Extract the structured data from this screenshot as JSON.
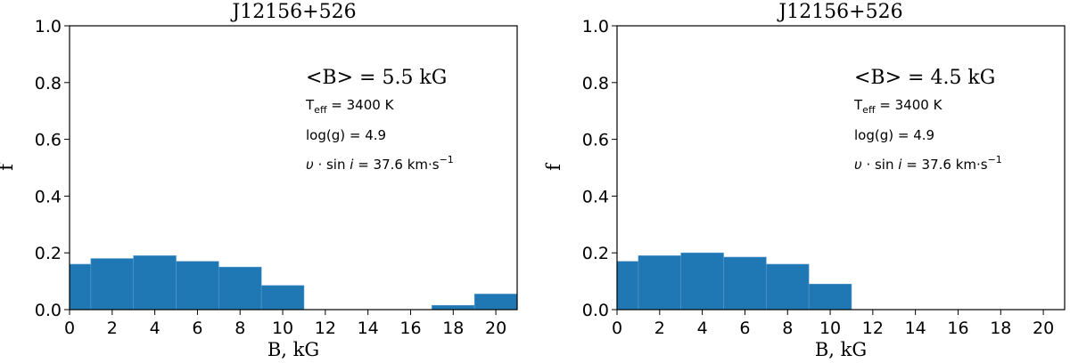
{
  "chart_data": [
    {
      "type": "bar",
      "title": "J12156+526",
      "xlabel": "B, kG",
      "ylabel": "f",
      "xlim": [
        0,
        21
      ],
      "ylim": [
        0,
        1.0
      ],
      "xticks": [
        "0",
        "2",
        "4",
        "6",
        "8",
        "10",
        "12",
        "14",
        "16",
        "18",
        "20"
      ],
      "yticks": [
        "0.0",
        "0.2",
        "0.4",
        "0.6",
        "0.8",
        "1.0"
      ],
      "grid": false,
      "bar_color": "#1f77b4",
      "bins": [
        {
          "from": 0,
          "to": 1,
          "value": 0.16
        },
        {
          "from": 1,
          "to": 3,
          "value": 0.18
        },
        {
          "from": 3,
          "to": 5,
          "value": 0.19
        },
        {
          "from": 5,
          "to": 7,
          "value": 0.17
        },
        {
          "from": 7,
          "to": 9,
          "value": 0.15
        },
        {
          "from": 9,
          "to": 11,
          "value": 0.085
        },
        {
          "from": 11,
          "to": 13,
          "value": 0
        },
        {
          "from": 13,
          "to": 15,
          "value": 0
        },
        {
          "from": 15,
          "to": 17,
          "value": 0
        },
        {
          "from": 17,
          "to": 19,
          "value": 0.015
        },
        {
          "from": 19,
          "to": 21,
          "value": 0.055
        }
      ],
      "annotations": {
        "mean_field": "<B> = 5.5 kG",
        "teff": "3400 K",
        "logg": "log(g) = 4.9",
        "vsini": "37.6 km·s"
      }
    },
    {
      "type": "bar",
      "title": "J12156+526",
      "xlabel": "B, kG",
      "ylabel": "f",
      "xlim": [
        0,
        21
      ],
      "ylim": [
        0,
        1.0
      ],
      "xticks": [
        "0",
        "2",
        "4",
        "6",
        "8",
        "10",
        "12",
        "14",
        "16",
        "18",
        "20"
      ],
      "yticks": [
        "0.0",
        "0.2",
        "0.4",
        "0.6",
        "0.8",
        "1.0"
      ],
      "grid": false,
      "bar_color": "#1f77b4",
      "bins": [
        {
          "from": 0,
          "to": 1,
          "value": 0.17
        },
        {
          "from": 1,
          "to": 3,
          "value": 0.19
        },
        {
          "from": 3,
          "to": 5,
          "value": 0.2
        },
        {
          "from": 5,
          "to": 7,
          "value": 0.185
        },
        {
          "from": 7,
          "to": 9,
          "value": 0.16
        },
        {
          "from": 9,
          "to": 11,
          "value": 0.09
        },
        {
          "from": 11,
          "to": 13,
          "value": 0
        },
        {
          "from": 13,
          "to": 15,
          "value": 0
        },
        {
          "from": 15,
          "to": 17,
          "value": 0
        },
        {
          "from": 17,
          "to": 19,
          "value": 0
        },
        {
          "from": 19,
          "to": 21,
          "value": 0
        }
      ],
      "annotations": {
        "mean_field": "<B> = 4.5 kG",
        "teff": "3400 K",
        "logg": "log(g) = 4.9",
        "vsini": "37.6 km·s"
      }
    }
  ]
}
